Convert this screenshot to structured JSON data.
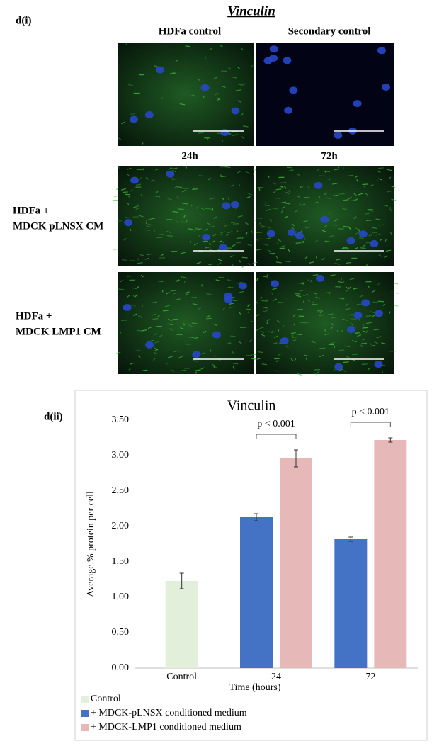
{
  "figure": {
    "title": "Vinculin",
    "panel_i": "d(i)",
    "panel_ii": "d(ii)",
    "column_headers_top": [
      "HDFa control",
      "Secondary control"
    ],
    "column_headers_bottom": [
      "24h",
      "72h"
    ],
    "row_labels": [
      [
        "HDFa +",
        "MDCK pLNSX CM"
      ],
      [
        "HDFa +",
        "MDCK LMP1 CM"
      ]
    ]
  },
  "chart_data": {
    "type": "bar",
    "title": "Vinculin",
    "x_label": "Time (hours)",
    "y_label": "Average % protein per cell",
    "categories": [
      "Control",
      "24",
      "72"
    ],
    "series": [
      {
        "name": "Control",
        "color": "#e2efda",
        "values": [
          1.23,
          null,
          null
        ],
        "errors": [
          0.11,
          null,
          null
        ]
      },
      {
        "name": "+ MDCK-pLNSX conditioned medium",
        "color": "#4472c4",
        "values": [
          null,
          2.13,
          1.82
        ],
        "errors": [
          null,
          0.05,
          0.03
        ]
      },
      {
        "name": "+ MDCK-LMP1 conditioned medium",
        "color": "#e6b8b7",
        "values": [
          null,
          2.96,
          3.22
        ],
        "errors": [
          null,
          0.12,
          0.03
        ]
      }
    ],
    "ylim": [
      0,
      3.5
    ],
    "yticks": [
      {
        "value": 0,
        "label": "0.00"
      },
      {
        "value": 0.5,
        "label": "0.50"
      },
      {
        "value": 1,
        "label": "1.00"
      },
      {
        "value": 1.5,
        "label": "1.50"
      },
      {
        "value": 2,
        "label": "2.00"
      },
      {
        "value": 2.5,
        "label": "2.50"
      },
      {
        "value": 3,
        "label": "3.00"
      },
      {
        "value": 3.5,
        "label": "3.50"
      }
    ],
    "annotations": [
      {
        "text": "p < 0.001",
        "category": "24"
      },
      {
        "text": "p < 0.001",
        "category": "72"
      }
    ],
    "legend": "bottom-left"
  }
}
